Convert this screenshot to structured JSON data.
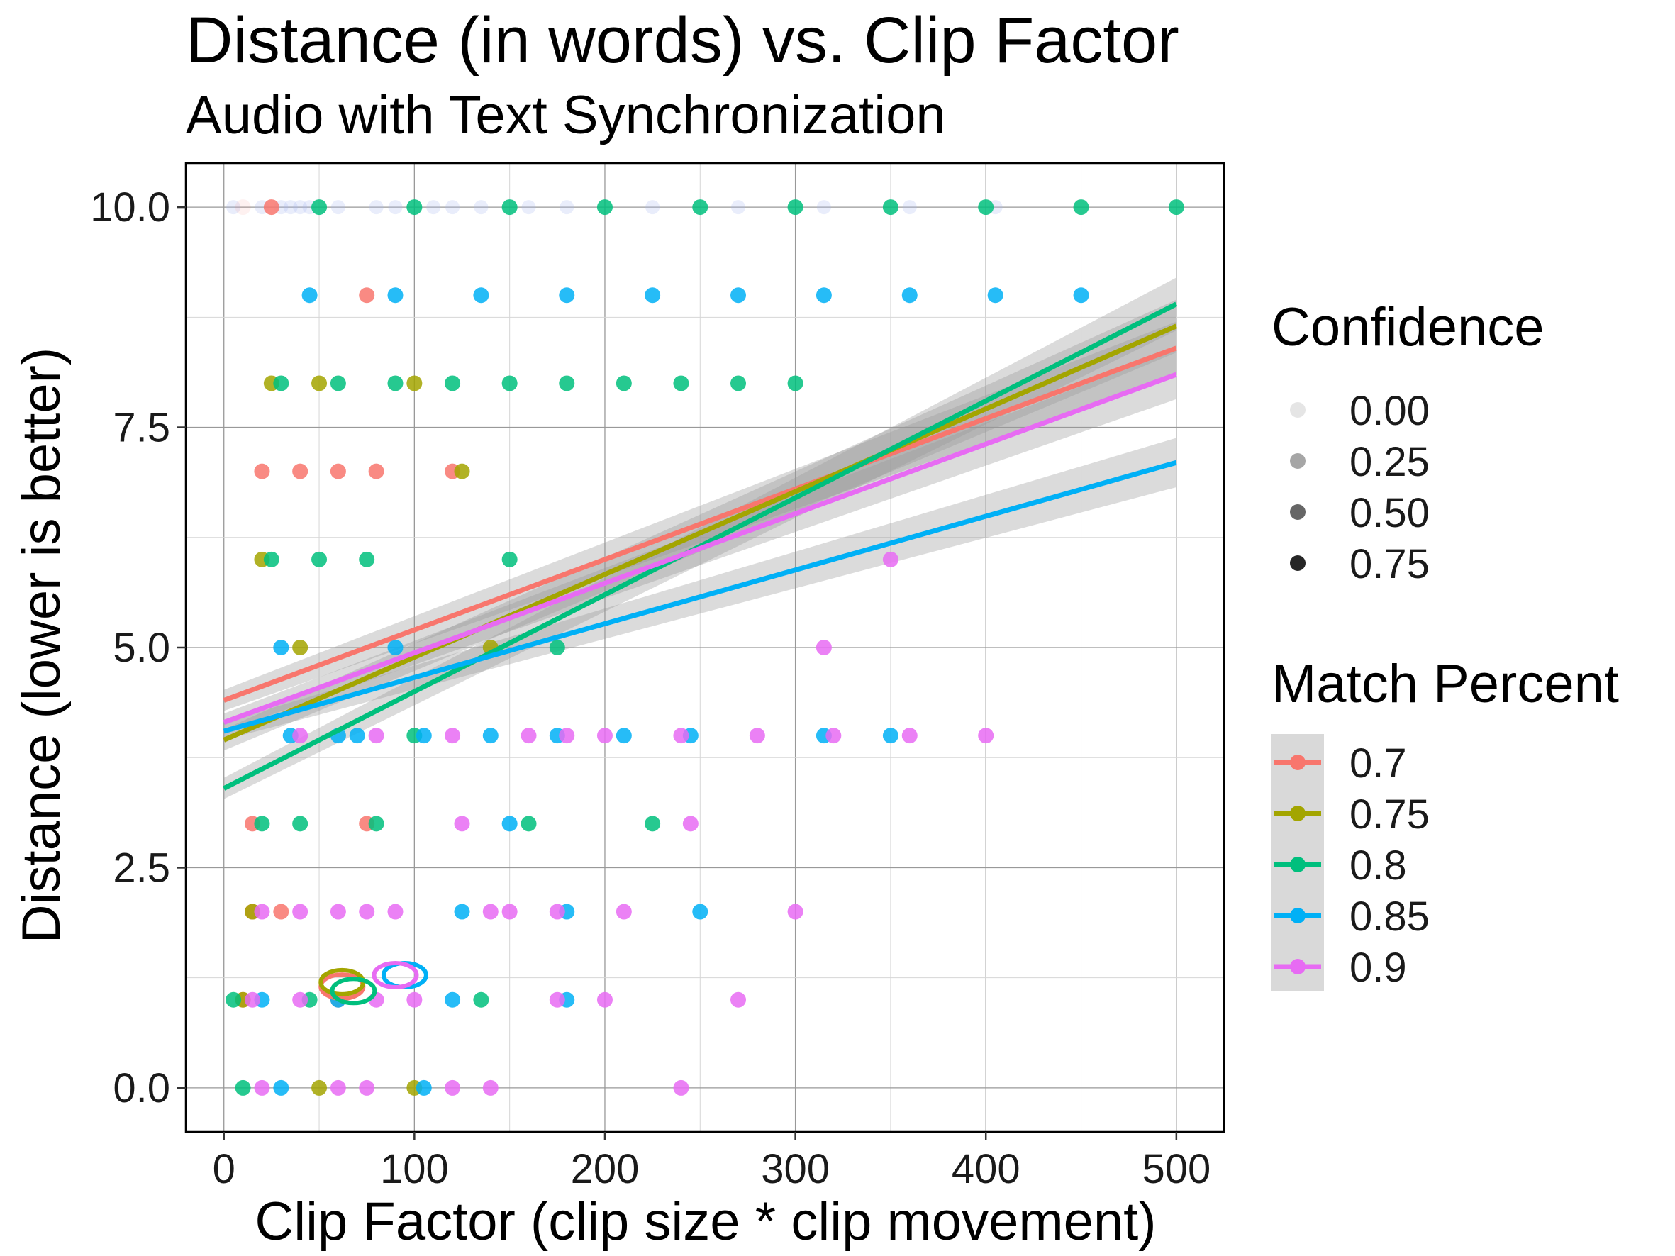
{
  "chart_data": {
    "type": "scatter",
    "title": "Distance (in words) vs. Clip Factor",
    "subtitle": "Audio with Text Synchronization",
    "xlabel": "Clip Factor (clip size * clip movement)",
    "ylabel": "Distance (lower is better)",
    "xlim": [
      -20,
      525
    ],
    "ylim": [
      -0.5,
      10.5
    ],
    "x_ticks": [
      0,
      100,
      200,
      300,
      400,
      500
    ],
    "x_tick_labels": [
      "0",
      "100",
      "200",
      "300",
      "400",
      "500"
    ],
    "y_ticks": [
      0,
      2.5,
      5,
      7.5,
      10
    ],
    "y_tick_labels": [
      "0.0",
      "2.5",
      "5.0",
      "7.5",
      "10.0"
    ],
    "grid": true,
    "legend_position": "right",
    "legend_confidence": {
      "title": "Confidence",
      "levels": [
        {
          "label": "0.00",
          "alpha": 0.1
        },
        {
          "label": "0.25",
          "alpha": 0.35
        },
        {
          "label": "0.50",
          "alpha": 0.6
        },
        {
          "label": "0.75",
          "alpha": 0.85
        }
      ]
    },
    "legend_match": {
      "title": "Match Percent"
    },
    "series": [
      {
        "name": "0.7",
        "color": "#F8766D",
        "trend": {
          "x": [
            0,
            500
          ],
          "y": [
            4.4,
            8.4
          ],
          "band": [
            0.12,
            0.3
          ]
        },
        "ellipse": {
          "x": 62,
          "y": 1.15
        },
        "points": [
          [
            10,
            10,
            0.1
          ],
          [
            25,
            10,
            0.85
          ],
          [
            75,
            9,
            0.85
          ],
          [
            20,
            7,
            0.85
          ],
          [
            40,
            7,
            0.85
          ],
          [
            60,
            7,
            0.85
          ],
          [
            80,
            7,
            0.85
          ],
          [
            120,
            7,
            0.85
          ],
          [
            15,
            3,
            0.85
          ],
          [
            75,
            3,
            0.85
          ],
          [
            15,
            2,
            0.85
          ],
          [
            30,
            2,
            0.85
          ],
          [
            10,
            1,
            0.85
          ],
          [
            60,
            1,
            0.85
          ]
        ]
      },
      {
        "name": "0.75",
        "color": "#A3A500",
        "trend": {
          "x": [
            0,
            500
          ],
          "y": [
            3.95,
            8.65
          ],
          "band": [
            0.12,
            0.3
          ]
        },
        "ellipse": {
          "x": 62,
          "y": 1.2
        },
        "points": [
          [
            25,
            8,
            0.85
          ],
          [
            50,
            8,
            0.85
          ],
          [
            100,
            8,
            0.85
          ],
          [
            125,
            7,
            0.85
          ],
          [
            20,
            6,
            0.85
          ],
          [
            40,
            5,
            0.85
          ],
          [
            140,
            5,
            0.85
          ],
          [
            15,
            2,
            0.85
          ],
          [
            10,
            1,
            0.85
          ],
          [
            50,
            0,
            0.85
          ],
          [
            100,
            0,
            0.85
          ]
        ]
      },
      {
        "name": "0.8",
        "color": "#00BF7D",
        "trend": {
          "x": [
            0,
            500
          ],
          "y": [
            3.4,
            8.9
          ],
          "band": [
            0.12,
            0.3
          ]
        },
        "ellipse": {
          "x": 68,
          "y": 1.1
        },
        "points": [
          [
            50,
            10,
            0.85
          ],
          [
            100,
            10,
            0.85
          ],
          [
            150,
            10,
            0.85
          ],
          [
            200,
            10,
            0.85
          ],
          [
            250,
            10,
            0.85
          ],
          [
            300,
            10,
            0.85
          ],
          [
            350,
            10,
            0.85
          ],
          [
            400,
            10,
            0.85
          ],
          [
            450,
            10,
            0.85
          ],
          [
            500,
            10,
            0.85
          ],
          [
            30,
            8,
            0.85
          ],
          [
            60,
            8,
            0.85
          ],
          [
            90,
            8,
            0.85
          ],
          [
            120,
            8,
            0.85
          ],
          [
            150,
            8,
            0.85
          ],
          [
            180,
            8,
            0.85
          ],
          [
            210,
            8,
            0.85
          ],
          [
            240,
            8,
            0.85
          ],
          [
            270,
            8,
            0.85
          ],
          [
            300,
            8,
            0.85
          ],
          [
            25,
            6,
            0.85
          ],
          [
            50,
            6,
            0.85
          ],
          [
            75,
            6,
            0.85
          ],
          [
            150,
            6,
            0.85
          ],
          [
            175,
            5,
            0.85
          ],
          [
            100,
            4,
            0.85
          ],
          [
            20,
            3,
            0.85
          ],
          [
            40,
            3,
            0.85
          ],
          [
            80,
            3,
            0.85
          ],
          [
            160,
            3,
            0.85
          ],
          [
            225,
            3,
            0.85
          ],
          [
            5,
            1,
            0.85
          ],
          [
            45,
            1,
            0.85
          ],
          [
            135,
            1,
            0.85
          ],
          [
            10,
            0,
            0.85
          ]
        ]
      },
      {
        "name": "0.85",
        "color": "#00B0F6",
        "trend": {
          "x": [
            0,
            500
          ],
          "y": [
            4.05,
            7.1
          ],
          "band": [
            0.1,
            0.28
          ]
        },
        "ellipse": {
          "x": 95,
          "y": 1.28
        },
        "points": [
          [
            45,
            9,
            0.85
          ],
          [
            90,
            9,
            0.85
          ],
          [
            135,
            9,
            0.85
          ],
          [
            180,
            9,
            0.85
          ],
          [
            225,
            9,
            0.85
          ],
          [
            270,
            9,
            0.85
          ],
          [
            315,
            9,
            0.85
          ],
          [
            360,
            9,
            0.85
          ],
          [
            405,
            9,
            0.85
          ],
          [
            450,
            9,
            0.85
          ],
          [
            30,
            5,
            0.85
          ],
          [
            90,
            5,
            0.85
          ],
          [
            35,
            4,
            0.85
          ],
          [
            60,
            4,
            0.85
          ],
          [
            70,
            4,
            0.85
          ],
          [
            105,
            4,
            0.85
          ],
          [
            140,
            4,
            0.85
          ],
          [
            175,
            4,
            0.85
          ],
          [
            210,
            4,
            0.85
          ],
          [
            245,
            4,
            0.85
          ],
          [
            315,
            4,
            0.85
          ],
          [
            350,
            4,
            0.85
          ],
          [
            150,
            3,
            0.85
          ],
          [
            125,
            2,
            0.85
          ],
          [
            180,
            2,
            0.85
          ],
          [
            250,
            2,
            0.85
          ],
          [
            20,
            1,
            0.85
          ],
          [
            60,
            1,
            0.85
          ],
          [
            120,
            1,
            0.85
          ],
          [
            180,
            1,
            0.85
          ],
          [
            30,
            0,
            0.85
          ],
          [
            105,
            0,
            0.85
          ]
        ]
      },
      {
        "name": "0.9",
        "color": "#E76BF3",
        "trend": {
          "x": [
            0,
            500
          ],
          "y": [
            4.15,
            8.1
          ],
          "band": [
            0.1,
            0.28
          ]
        },
        "ellipse": {
          "x": 90,
          "y": 1.28
        },
        "points": [
          [
            350,
            6,
            0.85
          ],
          [
            315,
            5,
            0.85
          ],
          [
            40,
            4,
            0.85
          ],
          [
            80,
            4,
            0.85
          ],
          [
            120,
            4,
            0.85
          ],
          [
            160,
            4,
            0.85
          ],
          [
            180,
            4,
            0.85
          ],
          [
            200,
            4,
            0.85
          ],
          [
            240,
            4,
            0.85
          ],
          [
            280,
            4,
            0.85
          ],
          [
            320,
            4,
            0.85
          ],
          [
            360,
            4,
            0.85
          ],
          [
            400,
            4,
            0.85
          ],
          [
            125,
            3,
            0.85
          ],
          [
            245,
            3,
            0.85
          ],
          [
            20,
            2,
            0.85
          ],
          [
            40,
            2,
            0.85
          ],
          [
            60,
            2,
            0.85
          ],
          [
            75,
            2,
            0.85
          ],
          [
            90,
            2,
            0.85
          ],
          [
            140,
            2,
            0.85
          ],
          [
            150,
            2,
            0.85
          ],
          [
            175,
            2,
            0.85
          ],
          [
            210,
            2,
            0.85
          ],
          [
            300,
            2,
            0.85
          ],
          [
            15,
            1,
            0.85
          ],
          [
            40,
            1,
            0.85
          ],
          [
            80,
            1,
            0.85
          ],
          [
            100,
            1,
            0.85
          ],
          [
            175,
            1,
            0.85
          ],
          [
            200,
            1,
            0.85
          ],
          [
            270,
            1,
            0.85
          ],
          [
            20,
            0,
            0.85
          ],
          [
            60,
            0,
            0.85
          ],
          [
            75,
            0,
            0.85
          ],
          [
            120,
            0,
            0.85
          ],
          [
            140,
            0,
            0.85
          ],
          [
            240,
            0,
            0.85
          ]
        ]
      }
    ],
    "faint_points": [
      [
        5,
        10
      ],
      [
        20,
        10
      ],
      [
        30,
        10
      ],
      [
        35,
        10
      ],
      [
        40,
        10
      ],
      [
        45,
        10
      ],
      [
        60,
        10
      ],
      [
        80,
        10
      ],
      [
        90,
        10
      ],
      [
        110,
        10
      ],
      [
        120,
        10
      ],
      [
        135,
        10
      ],
      [
        160,
        10
      ],
      [
        180,
        10
      ],
      [
        225,
        10
      ],
      [
        270,
        10
      ],
      [
        315,
        10
      ],
      [
        360,
        10
      ],
      [
        405,
        10
      ]
    ]
  }
}
